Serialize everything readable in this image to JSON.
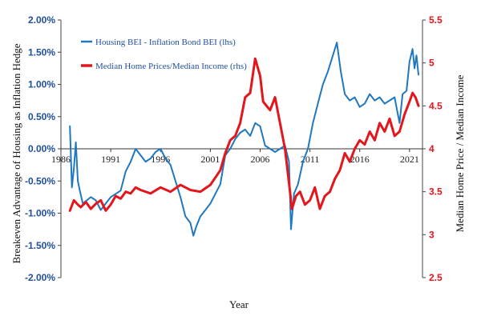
{
  "chart_data": {
    "type": "line",
    "title": "",
    "xlabel": "Year",
    "ylabel_left": "Breakeven Advantage of Housing as Inflation Hedge",
    "ylabel_right": "Median Home Price / Median Income",
    "x_ticks": [
      "1986",
      "1991",
      "1996",
      "2001",
      "2006",
      "2011",
      "2016",
      "2021"
    ],
    "xlim": [
      1986,
      2022.3
    ],
    "ylim_left": [
      -2.0,
      2.0
    ],
    "ylim_right": [
      2.5,
      5.5
    ],
    "left_ticks": [
      "-2.00%",
      "-1.50%",
      "-1.00%",
      "-0.50%",
      "0.00%",
      "0.50%",
      "1.00%",
      "1.50%",
      "2.00%"
    ],
    "right_ticks": [
      "2.5",
      "3",
      "3.5",
      "4",
      "4.5",
      "5",
      "5.5"
    ],
    "legend_position": "top-left",
    "colors": {
      "left_axis": "#1f4e9a",
      "right_axis": "#e3161b"
    },
    "series": [
      {
        "name": "Housing BEI - Inflation Bond BEI (lhs)",
        "axis": "left",
        "color": "#1f78c0",
        "points": [
          [
            1986.9,
            0.35
          ],
          [
            1987.1,
            -0.6
          ],
          [
            1987.3,
            -0.3
          ],
          [
            1987.5,
            0.1
          ],
          [
            1987.7,
            -0.5
          ],
          [
            1987.9,
            -0.65
          ],
          [
            1988.2,
            -0.85
          ],
          [
            1988.6,
            -0.8
          ],
          [
            1989.0,
            -0.75
          ],
          [
            1989.5,
            -0.8
          ],
          [
            1990.0,
            -0.95
          ],
          [
            1990.5,
            -0.85
          ],
          [
            1991.0,
            -0.75
          ],
          [
            1991.5,
            -0.7
          ],
          [
            1992.0,
            -0.65
          ],
          [
            1992.5,
            -0.35
          ],
          [
            1993.0,
            -0.2
          ],
          [
            1993.5,
            0.0
          ],
          [
            1994.0,
            -0.1
          ],
          [
            1994.5,
            -0.2
          ],
          [
            1995.0,
            -0.15
          ],
          [
            1995.5,
            -0.05
          ],
          [
            1996.0,
            0.0
          ],
          [
            1996.5,
            -0.15
          ],
          [
            1997.0,
            -0.25
          ],
          [
            1997.5,
            -0.5
          ],
          [
            1998.0,
            -0.75
          ],
          [
            1998.5,
            -1.05
          ],
          [
            1999.0,
            -1.15
          ],
          [
            1999.3,
            -1.35
          ],
          [
            1999.6,
            -1.2
          ],
          [
            2000.0,
            -1.05
          ],
          [
            2000.5,
            -0.95
          ],
          [
            2001.0,
            -0.85
          ],
          [
            2001.5,
            -0.7
          ],
          [
            2002.0,
            -0.55
          ],
          [
            2002.5,
            -0.1
          ],
          [
            2003.0,
            0.0
          ],
          [
            2003.5,
            0.15
          ],
          [
            2004.0,
            0.25
          ],
          [
            2004.5,
            0.3
          ],
          [
            2005.0,
            0.2
          ],
          [
            2005.5,
            0.4
          ],
          [
            2006.0,
            0.35
          ],
          [
            2006.5,
            0.05
          ],
          [
            2007.0,
            0.0
          ],
          [
            2007.5,
            -0.05
          ],
          [
            2008.0,
            0.0
          ],
          [
            2008.5,
            0.05
          ],
          [
            2008.9,
            -0.2
          ],
          [
            2009.1,
            -1.25
          ],
          [
            2009.4,
            -0.7
          ],
          [
            2009.8,
            -0.55
          ],
          [
            2010.3,
            -0.2
          ],
          [
            2010.8,
            0.0
          ],
          [
            2011.3,
            0.4
          ],
          [
            2011.8,
            0.7
          ],
          [
            2012.3,
            1.0
          ],
          [
            2012.8,
            1.2
          ],
          [
            2013.3,
            1.45
          ],
          [
            2013.7,
            1.65
          ],
          [
            2014.1,
            1.2
          ],
          [
            2014.5,
            0.85
          ],
          [
            2015.0,
            0.75
          ],
          [
            2015.5,
            0.8
          ],
          [
            2016.0,
            0.65
          ],
          [
            2016.5,
            0.7
          ],
          [
            2017.0,
            0.85
          ],
          [
            2017.5,
            0.75
          ],
          [
            2018.0,
            0.8
          ],
          [
            2018.5,
            0.7
          ],
          [
            2019.0,
            0.75
          ],
          [
            2019.5,
            0.8
          ],
          [
            2020.0,
            0.4
          ],
          [
            2020.3,
            0.85
          ],
          [
            2020.7,
            0.9
          ],
          [
            2021.0,
            1.35
          ],
          [
            2021.3,
            1.55
          ],
          [
            2021.5,
            1.25
          ],
          [
            2021.7,
            1.45
          ],
          [
            2021.9,
            1.15
          ]
        ]
      },
      {
        "name": "Median Home Prices/Median Income (rhs)",
        "axis": "right",
        "color": "#e3161b",
        "points": [
          [
            1986.9,
            3.28
          ],
          [
            1987.3,
            3.4
          ],
          [
            1987.7,
            3.35
          ],
          [
            1988.0,
            3.32
          ],
          [
            1988.5,
            3.38
          ],
          [
            1989.0,
            3.3
          ],
          [
            1989.5,
            3.36
          ],
          [
            1990.0,
            3.4
          ],
          [
            1990.5,
            3.28
          ],
          [
            1991.0,
            3.35
          ],
          [
            1991.5,
            3.45
          ],
          [
            1992.0,
            3.42
          ],
          [
            1992.5,
            3.5
          ],
          [
            1993.0,
            3.48
          ],
          [
            1993.5,
            3.55
          ],
          [
            1994.0,
            3.52
          ],
          [
            1995.0,
            3.48
          ],
          [
            1996.0,
            3.55
          ],
          [
            1997.0,
            3.5
          ],
          [
            1998.0,
            3.58
          ],
          [
            1999.0,
            3.52
          ],
          [
            2000.0,
            3.5
          ],
          [
            2001.0,
            3.58
          ],
          [
            2002.0,
            3.75
          ],
          [
            2002.5,
            3.95
          ],
          [
            2003.0,
            4.1
          ],
          [
            2003.5,
            4.15
          ],
          [
            2004.0,
            4.3
          ],
          [
            2004.5,
            4.6
          ],
          [
            2005.0,
            4.65
          ],
          [
            2005.5,
            5.05
          ],
          [
            2006.0,
            4.85
          ],
          [
            2006.3,
            4.55
          ],
          [
            2007.0,
            4.45
          ],
          [
            2007.5,
            4.6
          ],
          [
            2008.0,
            4.3
          ],
          [
            2008.5,
            4.0
          ],
          [
            2008.9,
            3.6
          ],
          [
            2009.2,
            3.3
          ],
          [
            2009.6,
            3.45
          ],
          [
            2010.0,
            3.5
          ],
          [
            2010.5,
            3.35
          ],
          [
            2011.0,
            3.4
          ],
          [
            2011.5,
            3.55
          ],
          [
            2012.0,
            3.3
          ],
          [
            2012.5,
            3.45
          ],
          [
            2013.0,
            3.5
          ],
          [
            2013.5,
            3.65
          ],
          [
            2014.0,
            3.75
          ],
          [
            2014.5,
            3.95
          ],
          [
            2015.0,
            3.85
          ],
          [
            2015.5,
            4.0
          ],
          [
            2016.0,
            4.1
          ],
          [
            2016.5,
            4.05
          ],
          [
            2017.0,
            4.2
          ],
          [
            2017.5,
            4.1
          ],
          [
            2018.0,
            4.3
          ],
          [
            2018.5,
            4.2
          ],
          [
            2019.0,
            4.35
          ],
          [
            2019.5,
            4.15
          ],
          [
            2020.0,
            4.2
          ],
          [
            2020.5,
            4.4
          ],
          [
            2021.0,
            4.55
          ],
          [
            2021.3,
            4.65
          ],
          [
            2021.6,
            4.6
          ],
          [
            2021.9,
            4.5
          ]
        ]
      }
    ]
  }
}
